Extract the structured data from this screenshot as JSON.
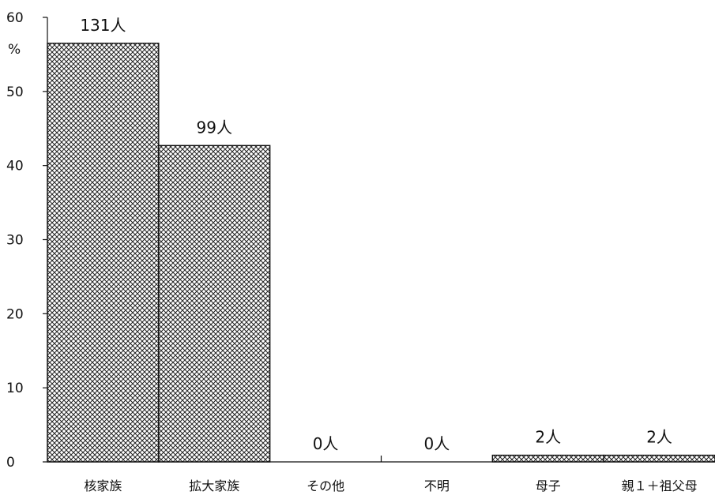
{
  "chart_data": {
    "type": "bar",
    "ylabel": "%",
    "ylim": [
      0,
      60
    ],
    "yticks": [
      0,
      10,
      20,
      30,
      40,
      50,
      60
    ],
    "grid": false,
    "categories": [
      "核家族",
      "拡大家族",
      "その他",
      "不明",
      "母子",
      "親１＋祖父母"
    ],
    "values": [
      56.5,
      42.7,
      0,
      0,
      0.9,
      0.9
    ],
    "data_labels": [
      "131人",
      "99人",
      "0人",
      "0人",
      "2人",
      "2人"
    ]
  }
}
